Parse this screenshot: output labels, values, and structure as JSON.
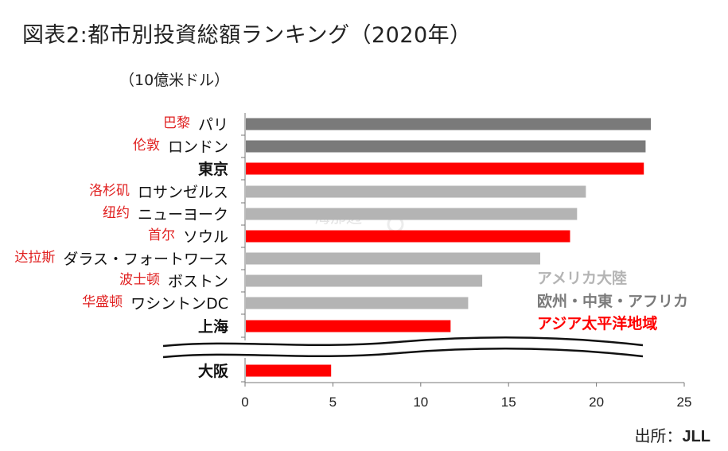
{
  "page": {
    "title": "図表2:都市別投資総額ランキング（2020年）",
    "source_label": "出所：",
    "source_value": "JLL"
  },
  "chart_data": {
    "type": "bar",
    "orientation": "horizontal",
    "title": "図表2:都市別投資総額ランキング（2020年）",
    "unit_label": "（10億米ドル）",
    "xlim": [
      0,
      25
    ],
    "x_ticks": [
      0,
      5,
      10,
      15,
      20,
      25
    ],
    "axis_break_before_last": true,
    "categories": [
      {
        "label": "パリ",
        "alt_label": "巴黎",
        "value": 23.1,
        "region": "europe"
      },
      {
        "label": "ロンドン",
        "alt_label": "伦敦",
        "value": 22.8,
        "region": "europe"
      },
      {
        "label": "東京",
        "alt_label": "",
        "value": 22.7,
        "region": "asia"
      },
      {
        "label": "ロサンゼルス",
        "alt_label": "洛杉矶",
        "value": 19.4,
        "region": "americas"
      },
      {
        "label": "ニューヨーク",
        "alt_label": "纽约",
        "value": 18.9,
        "region": "americas"
      },
      {
        "label": "ソウル",
        "alt_label": "首尔",
        "value": 18.5,
        "region": "asia"
      },
      {
        "label": "ダラス・フォートワース",
        "alt_label": "达拉斯",
        "value": 16.8,
        "region": "americas"
      },
      {
        "label": "ボストン",
        "alt_label": "波士顿",
        "value": 13.5,
        "region": "americas"
      },
      {
        "label": "ワシントンDC",
        "alt_label": "华盛顿",
        "value": 12.7,
        "region": "americas"
      },
      {
        "label": "上海",
        "alt_label": "",
        "value": 11.7,
        "region": "asia"
      },
      {
        "label": "大阪",
        "alt_label": "",
        "value": 4.9,
        "region": "asia"
      }
    ],
    "legend": [
      {
        "key": "americas",
        "label": "アメリカ大陸",
        "color": "#b4b4b4"
      },
      {
        "key": "europe",
        "label": "欧州・中東・アフリカ",
        "color": "#7a7a7a"
      },
      {
        "key": "asia",
        "label": "アジア太平洋地域",
        "color": "#ff0000"
      }
    ],
    "legend_placement": "bottom-right",
    "watermark": {
      "main": "海那边",
      "sub": "Hinabian"
    }
  }
}
